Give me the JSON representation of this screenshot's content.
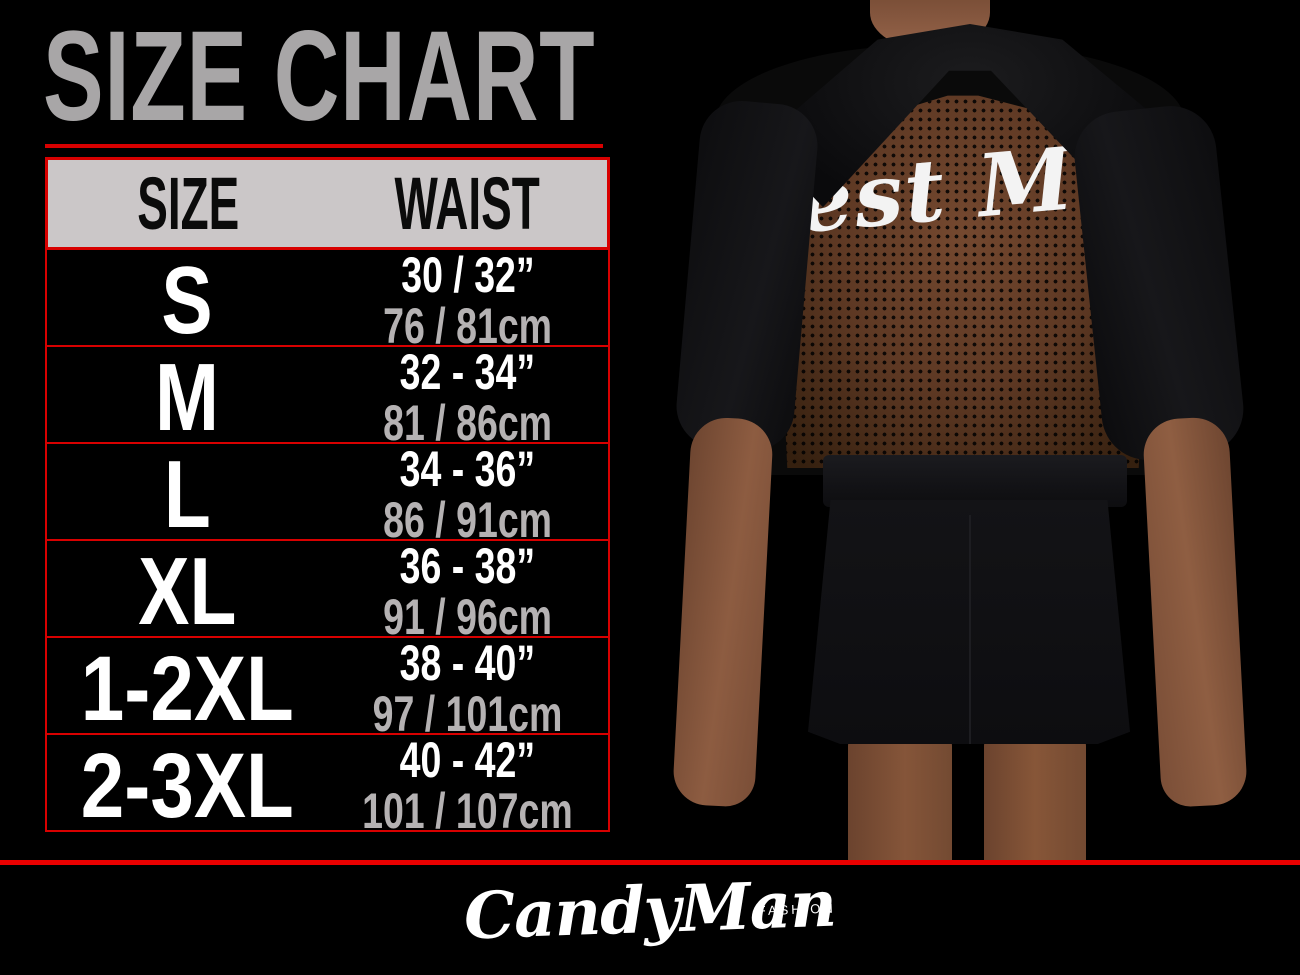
{
  "title": "SIZE CHART",
  "table": {
    "headers": {
      "size": "SIZE",
      "waist": "WAIST"
    },
    "rows": [
      {
        "size": "S",
        "waist_in": "30 / 32”",
        "waist_cm": "76 / 81cm"
      },
      {
        "size": "M",
        "waist_in": "32 - 34”",
        "waist_cm": "81 / 86cm"
      },
      {
        "size": "L",
        "waist_in": "34 - 36”",
        "waist_cm": "86 / 91cm"
      },
      {
        "size": "XL",
        "waist_in": "36 - 38”",
        "waist_cm": "91 / 96cm"
      },
      {
        "size": "1-2XL",
        "waist_in": "38 - 40”",
        "waist_cm": "97 / 101cm"
      },
      {
        "size": "2-3XL",
        "waist_in": "40 - 42”",
        "waist_cm": "101 / 107cm"
      }
    ]
  },
  "chart_data": {
    "type": "table",
    "title": "SIZE CHART",
    "columns": [
      "SIZE",
      "WAIST (inches)",
      "WAIST (cm)"
    ],
    "rows": [
      [
        "S",
        "30 / 32”",
        "76 / 81cm"
      ],
      [
        "M",
        "32 - 34”",
        "81 / 86cm"
      ],
      [
        "L",
        "34 - 36”",
        "86 / 91cm"
      ],
      [
        "XL",
        "36 - 38”",
        "91 / 96cm"
      ],
      [
        "1-2XL",
        "38 - 40”",
        "97 / 101cm"
      ],
      [
        "2-3XL",
        "40 - 42”",
        "101 / 107cm"
      ]
    ]
  },
  "photo": {
    "print_text": "Best Man"
  },
  "footer": {
    "brand": "CandyMan",
    "brand_sub": "FASHION"
  },
  "colors": {
    "background": "#000000",
    "title_gray": "#a8a6a7",
    "accent_red": "#d80000",
    "bottom_line_red": "#ea0000",
    "header_bg": "#cbc7c8",
    "text_white": "#ffffff",
    "cm_text_gray": "#b5b2b3"
  }
}
